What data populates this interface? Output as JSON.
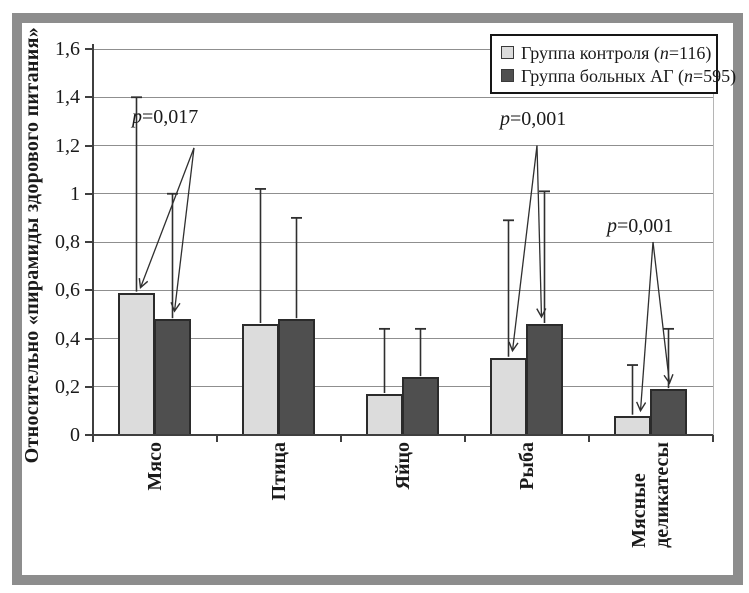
{
  "figure": {
    "kind": "published-paper-bar-chart"
  },
  "chart_data": {
    "type": "bar",
    "title": "",
    "xlabel": "",
    "ylabel": "Относительно «пирамиды здорового питания»",
    "ylim": [
      0,
      1.6
    ],
    "ytick_step": 0.2,
    "ytick_labels": [
      "0",
      "0,2",
      "0,4",
      "0,6",
      "0,8",
      "1",
      "1,2",
      "1,4",
      "1,6"
    ],
    "grid": true,
    "legend_position": "top-right",
    "categories": [
      "Мясо",
      "Птица",
      "Яйцо",
      "Рыба",
      "Мясные\nделикатесы"
    ],
    "series": [
      {
        "name": "Группа контроля (n=116)",
        "color": "#dcdcdc",
        "values": [
          0.59,
          0.46,
          0.17,
          0.32,
          0.08
        ],
        "error_top": [
          1.4,
          1.02,
          0.44,
          0.89,
          0.29
        ]
      },
      {
        "name": "Группа больных АГ (n=595)",
        "color": "#4f4f4f",
        "values": [
          0.48,
          0.48,
          0.24,
          0.46,
          0.19
        ],
        "error_top": [
          1.0,
          0.9,
          0.44,
          1.01,
          0.44
        ]
      }
    ],
    "annotations": [
      {
        "label": "p=0,017",
        "category": "Мясо",
        "apex_value": 1.19
      },
      {
        "label": "p=0,001",
        "category": "Рыба",
        "apex_value": 1.2
      },
      {
        "label": "p=0,001",
        "category": "Мясные\nделикатесы",
        "apex_value": 0.8
      }
    ]
  },
  "colors": {
    "bar_control": "#dcdcdc",
    "bar_patients": "#4f4f4f",
    "bar_border": "#2b2b2b",
    "gridline": "#8f8f8f",
    "axis": "#3f3f3f",
    "error_bar": "#2f2f2f",
    "annotation": "#2f2f2f",
    "frame": "#8d8d8d",
    "background": "#ffffff",
    "text": "#1a1a1a"
  }
}
